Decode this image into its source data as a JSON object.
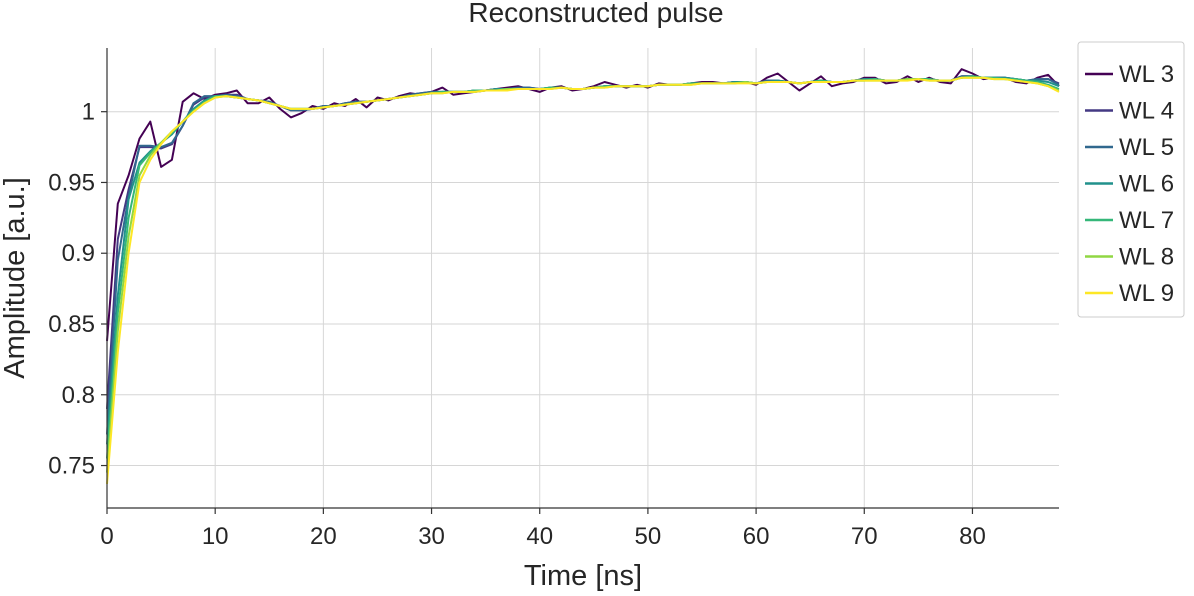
{
  "chart_data": {
    "type": "line",
    "title": "Reconstructed pulse",
    "xlabel": "Time [ns]",
    "ylabel": "Amplitude [a.u.]",
    "xlim": [
      0,
      88
    ],
    "ylim": [
      0.72,
      1.045
    ],
    "xticks": [
      0,
      10,
      20,
      30,
      40,
      50,
      60,
      70,
      80
    ],
    "yticks": [
      0.75,
      0.8,
      0.85,
      0.9,
      0.95,
      1
    ],
    "ytick_labels": [
      "0.75",
      "0.8",
      "0.85",
      "0.9",
      "0.95",
      "1"
    ],
    "grid": true,
    "legend_position": "outside-right-top",
    "x": [
      0,
      1,
      2,
      3,
      4,
      5,
      6,
      7,
      8,
      9,
      10,
      11,
      12,
      13,
      14,
      15,
      16,
      17,
      18,
      19,
      20,
      21,
      22,
      23,
      24,
      25,
      26,
      27,
      28,
      29,
      30,
      31,
      32,
      33,
      34,
      35,
      36,
      37,
      38,
      39,
      40,
      41,
      42,
      43,
      44,
      45,
      46,
      47,
      48,
      49,
      50,
      51,
      52,
      53,
      54,
      55,
      56,
      57,
      58,
      59,
      60,
      61,
      62,
      63,
      64,
      65,
      66,
      67,
      68,
      69,
      70,
      71,
      72,
      73,
      74,
      75,
      76,
      77,
      78,
      79,
      80,
      81,
      82,
      83,
      84,
      85,
      86,
      87,
      88
    ],
    "series": [
      {
        "name": "WL 3",
        "color": "#440154",
        "values": [
          0.838,
          0.935,
          0.955,
          0.981,
          0.993,
          0.961,
          0.966,
          1.007,
          1.013,
          1.009,
          1.012,
          1.013,
          1.015,
          1.006,
          1.006,
          1.01,
          1.002,
          0.996,
          0.999,
          1.004,
          1.002,
          1.006,
          1.004,
          1.009,
          1.003,
          1.01,
          1.008,
          1.011,
          1.013,
          1.012,
          1.014,
          1.017,
          1.012,
          1.013,
          1.014,
          1.015,
          1.016,
          1.017,
          1.018,
          1.016,
          1.014,
          1.017,
          1.018,
          1.015,
          1.016,
          1.018,
          1.021,
          1.019,
          1.017,
          1.019,
          1.017,
          1.02,
          1.019,
          1.019,
          1.02,
          1.021,
          1.021,
          1.02,
          1.021,
          1.021,
          1.019,
          1.024,
          1.027,
          1.021,
          1.015,
          1.02,
          1.025,
          1.018,
          1.02,
          1.021,
          1.024,
          1.024,
          1.02,
          1.021,
          1.025,
          1.021,
          1.024,
          1.021,
          1.02,
          1.03,
          1.027,
          1.023,
          1.024,
          1.024,
          1.021,
          1.02,
          1.024,
          1.026,
          1.018
        ]
      },
      {
        "name": "WL 4",
        "color": "#443983",
        "values": [
          0.79,
          0.91,
          0.945,
          0.975,
          0.975,
          0.974,
          0.977,
          0.99,
          1.005,
          1.01,
          1.011,
          1.012,
          1.012,
          1.009,
          1.008,
          1.007,
          1.004,
          1.001,
          1.001,
          1.002,
          1.004,
          1.004,
          1.006,
          1.007,
          1.007,
          1.008,
          1.009,
          1.01,
          1.012,
          1.013,
          1.014,
          1.014,
          1.014,
          1.014,
          1.015,
          1.015,
          1.016,
          1.016,
          1.017,
          1.017,
          1.016,
          1.017,
          1.017,
          1.016,
          1.016,
          1.017,
          1.018,
          1.018,
          1.018,
          1.018,
          1.018,
          1.019,
          1.019,
          1.019,
          1.02,
          1.02,
          1.02,
          1.02,
          1.021,
          1.021,
          1.02,
          1.022,
          1.022,
          1.021,
          1.02,
          1.021,
          1.022,
          1.021,
          1.021,
          1.022,
          1.023,
          1.023,
          1.022,
          1.022,
          1.023,
          1.023,
          1.023,
          1.022,
          1.022,
          1.025,
          1.025,
          1.024,
          1.024,
          1.024,
          1.023,
          1.022,
          1.023,
          1.023,
          1.02
        ]
      },
      {
        "name": "WL 5",
        "color": "#31688e",
        "values": [
          0.772,
          0.895,
          0.94,
          0.976,
          0.976,
          0.975,
          0.978,
          0.99,
          1.006,
          1.011,
          1.011,
          1.012,
          1.011,
          1.009,
          1.008,
          1.007,
          1.004,
          1.001,
          1.001,
          1.002,
          1.004,
          1.004,
          1.006,
          1.007,
          1.007,
          1.008,
          1.009,
          1.01,
          1.012,
          1.013,
          1.014,
          1.014,
          1.014,
          1.014,
          1.015,
          1.015,
          1.016,
          1.016,
          1.017,
          1.017,
          1.016,
          1.017,
          1.017,
          1.016,
          1.016,
          1.017,
          1.018,
          1.018,
          1.018,
          1.018,
          1.018,
          1.019,
          1.019,
          1.019,
          1.02,
          1.02,
          1.02,
          1.02,
          1.021,
          1.021,
          1.02,
          1.022,
          1.022,
          1.021,
          1.02,
          1.021,
          1.022,
          1.021,
          1.021,
          1.022,
          1.023,
          1.023,
          1.022,
          1.022,
          1.023,
          1.023,
          1.023,
          1.022,
          1.022,
          1.025,
          1.025,
          1.024,
          1.024,
          1.024,
          1.023,
          1.022,
          1.023,
          1.023,
          1.019
        ]
      },
      {
        "name": "WL 6",
        "color": "#21918c",
        "values": [
          0.765,
          0.87,
          0.938,
          0.964,
          0.972,
          0.978,
          0.984,
          0.993,
          1.002,
          1.008,
          1.011,
          1.011,
          1.01,
          1.009,
          1.008,
          1.006,
          1.004,
          1.002,
          1.002,
          1.002,
          1.003,
          1.004,
          1.005,
          1.006,
          1.007,
          1.008,
          1.009,
          1.01,
          1.011,
          1.012,
          1.013,
          1.014,
          1.014,
          1.014,
          1.015,
          1.015,
          1.016,
          1.016,
          1.016,
          1.016,
          1.016,
          1.017,
          1.017,
          1.016,
          1.016,
          1.017,
          1.018,
          1.018,
          1.018,
          1.018,
          1.018,
          1.019,
          1.019,
          1.019,
          1.02,
          1.02,
          1.02,
          1.02,
          1.021,
          1.021,
          1.02,
          1.021,
          1.022,
          1.021,
          1.02,
          1.021,
          1.022,
          1.021,
          1.021,
          1.022,
          1.023,
          1.023,
          1.022,
          1.022,
          1.023,
          1.023,
          1.023,
          1.022,
          1.022,
          1.024,
          1.025,
          1.024,
          1.024,
          1.024,
          1.023,
          1.022,
          1.022,
          1.021,
          1.018
        ]
      },
      {
        "name": "WL 7",
        "color": "#35b779",
        "values": [
          0.755,
          0.858,
          0.925,
          0.962,
          0.971,
          0.978,
          0.985,
          0.993,
          1.001,
          1.007,
          1.011,
          1.011,
          1.01,
          1.009,
          1.008,
          1.006,
          1.004,
          1.002,
          1.002,
          1.002,
          1.003,
          1.004,
          1.005,
          1.006,
          1.007,
          1.008,
          1.009,
          1.01,
          1.011,
          1.012,
          1.013,
          1.014,
          1.014,
          1.014,
          1.015,
          1.015,
          1.015,
          1.016,
          1.016,
          1.016,
          1.016,
          1.017,
          1.017,
          1.016,
          1.016,
          1.017,
          1.018,
          1.018,
          1.018,
          1.018,
          1.018,
          1.019,
          1.019,
          1.019,
          1.02,
          1.02,
          1.02,
          1.02,
          1.02,
          1.021,
          1.02,
          1.021,
          1.021,
          1.021,
          1.02,
          1.021,
          1.022,
          1.021,
          1.021,
          1.022,
          1.022,
          1.023,
          1.022,
          1.022,
          1.023,
          1.023,
          1.023,
          1.022,
          1.022,
          1.024,
          1.025,
          1.024,
          1.024,
          1.023,
          1.023,
          1.022,
          1.021,
          1.019,
          1.016
        ]
      },
      {
        "name": "WL 8",
        "color": "#90d743",
        "values": [
          0.745,
          0.845,
          0.912,
          0.955,
          0.969,
          0.978,
          0.986,
          0.993,
          1.0,
          1.006,
          1.01,
          1.011,
          1.01,
          1.009,
          1.008,
          1.006,
          1.004,
          1.002,
          1.002,
          1.002,
          1.003,
          1.004,
          1.005,
          1.006,
          1.007,
          1.008,
          1.009,
          1.01,
          1.011,
          1.012,
          1.013,
          1.013,
          1.014,
          1.014,
          1.014,
          1.015,
          1.015,
          1.016,
          1.016,
          1.016,
          1.016,
          1.016,
          1.017,
          1.016,
          1.016,
          1.017,
          1.017,
          1.018,
          1.018,
          1.018,
          1.018,
          1.019,
          1.019,
          1.019,
          1.019,
          1.02,
          1.02,
          1.02,
          1.02,
          1.021,
          1.02,
          1.021,
          1.021,
          1.021,
          1.02,
          1.021,
          1.021,
          1.021,
          1.021,
          1.022,
          1.022,
          1.022,
          1.022,
          1.022,
          1.023,
          1.023,
          1.022,
          1.022,
          1.022,
          1.024,
          1.024,
          1.024,
          1.023,
          1.023,
          1.022,
          1.021,
          1.02,
          1.018,
          1.015
        ]
      },
      {
        "name": "WL 9",
        "color": "#fde725",
        "values": [
          0.737,
          0.83,
          0.9,
          0.95,
          0.966,
          0.977,
          0.986,
          0.993,
          1.0,
          1.006,
          1.01,
          1.011,
          1.01,
          1.009,
          1.008,
          1.006,
          1.004,
          1.002,
          1.002,
          1.002,
          1.003,
          1.004,
          1.005,
          1.006,
          1.007,
          1.008,
          1.009,
          1.01,
          1.011,
          1.012,
          1.013,
          1.013,
          1.014,
          1.014,
          1.014,
          1.015,
          1.015,
          1.015,
          1.016,
          1.016,
          1.016,
          1.016,
          1.017,
          1.016,
          1.016,
          1.017,
          1.017,
          1.018,
          1.018,
          1.018,
          1.018,
          1.019,
          1.019,
          1.019,
          1.019,
          1.02,
          1.02,
          1.02,
          1.02,
          1.02,
          1.02,
          1.021,
          1.021,
          1.021,
          1.02,
          1.021,
          1.021,
          1.021,
          1.021,
          1.022,
          1.022,
          1.022,
          1.022,
          1.022,
          1.022,
          1.023,
          1.022,
          1.022,
          1.022,
          1.024,
          1.024,
          1.024,
          1.023,
          1.023,
          1.022,
          1.021,
          1.02,
          1.018,
          1.014
        ]
      }
    ]
  }
}
